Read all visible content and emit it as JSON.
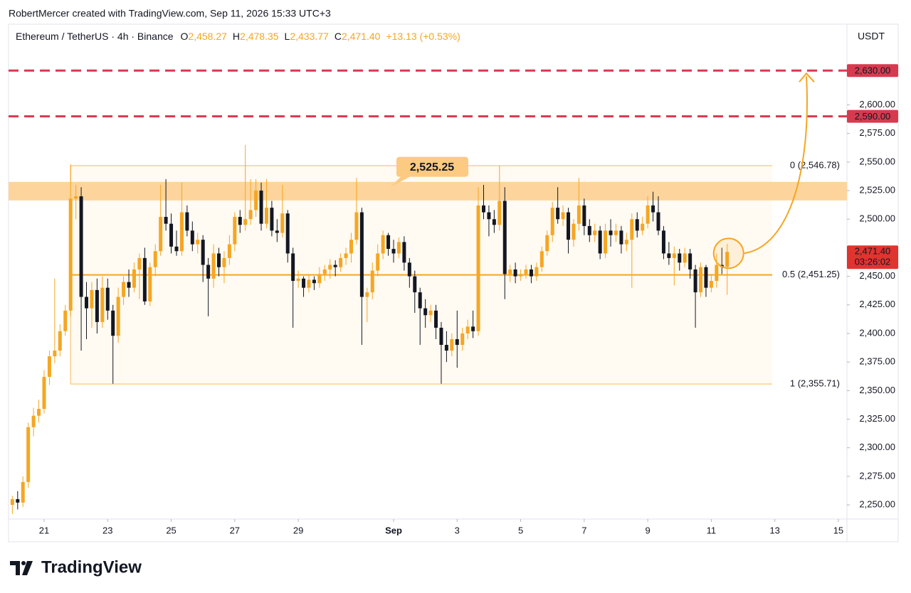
{
  "header": {
    "credit": "RobertMercer created with TradingView.com, Sep 11, 2026 15:33 UTC+3",
    "logo": "TradingView"
  },
  "chart_data": {
    "type": "candlestick",
    "title": "Ethereum / TetherUS · 4h · Binance",
    "ohlc": [
      {
        "key": "O",
        "value": "2,458.27"
      },
      {
        "key": "H",
        "value": "2,478.35"
      },
      {
        "key": "L",
        "value": "2,433.77"
      },
      {
        "key": "C",
        "value": "2,471.40"
      }
    ],
    "change": "+13.13 (+0.53%)",
    "currency": "USDT",
    "up_color": "#f5a623",
    "down_color": "#131722",
    "candles": [
      [
        2250,
        2258,
        2242,
        2255
      ],
      [
        2255,
        2262,
        2246,
        2252
      ],
      [
        2252,
        2275,
        2248,
        2270
      ],
      [
        2270,
        2322,
        2265,
        2318
      ],
      [
        2318,
        2335,
        2310,
        2328
      ],
      [
        2328,
        2342,
        2322,
        2334
      ],
      [
        2334,
        2368,
        2330,
        2362
      ],
      [
        2362,
        2385,
        2355,
        2380
      ],
      [
        2380,
        2448,
        2374,
        2385
      ],
      [
        2385,
        2408,
        2380,
        2402
      ],
      [
        2402,
        2425,
        2398,
        2420
      ],
      [
        2420,
        2548,
        2415,
        2518
      ],
      [
        2518,
        2530,
        2500,
        2520
      ],
      [
        2520,
        2528,
        2385,
        2432
      ],
      [
        2432,
        2445,
        2395,
        2422
      ],
      [
        2422,
        2445,
        2405,
        2438
      ],
      [
        2438,
        2448,
        2400,
        2410
      ],
      [
        2410,
        2450,
        2405,
        2440
      ],
      [
        2440,
        2448,
        2412,
        2420
      ],
      [
        2420,
        2425,
        2356,
        2398
      ],
      [
        2398,
        2440,
        2392,
        2432
      ],
      [
        2432,
        2450,
        2425,
        2445
      ],
      [
        2445,
        2456,
        2432,
        2440
      ],
      [
        2440,
        2462,
        2436,
        2456
      ],
      [
        2456,
        2470,
        2430,
        2466
      ],
      [
        2466,
        2475,
        2425,
        2428
      ],
      [
        2428,
        2462,
        2424,
        2458
      ],
      [
        2458,
        2478,
        2450,
        2472
      ],
      [
        2472,
        2530,
        2468,
        2502
      ],
      [
        2502,
        2535,
        2490,
        2496
      ],
      [
        2496,
        2505,
        2470,
        2476
      ],
      [
        2476,
        2490,
        2468,
        2472
      ],
      [
        2472,
        2532,
        2468,
        2506
      ],
      [
        2506,
        2512,
        2485,
        2490
      ],
      [
        2490,
        2498,
        2472,
        2478
      ],
      [
        2478,
        2488,
        2470,
        2482
      ],
      [
        2482,
        2486,
        2445,
        2460
      ],
      [
        2460,
        2466,
        2415,
        2448
      ],
      [
        2448,
        2478,
        2440,
        2470
      ],
      [
        2470,
        2475,
        2450,
        2458
      ],
      [
        2458,
        2472,
        2444,
        2466
      ],
      [
        2466,
        2486,
        2460,
        2478
      ],
      [
        2478,
        2506,
        2472,
        2502
      ],
      [
        2502,
        2508,
        2488,
        2495
      ],
      [
        2495,
        2565,
        2490,
        2500
      ],
      [
        2500,
        2535,
        2495,
        2508
      ],
      [
        2508,
        2535,
        2502,
        2525
      ],
      [
        2525,
        2532,
        2490,
        2496
      ],
      [
        2496,
        2535,
        2492,
        2510
      ],
      [
        2510,
        2516,
        2485,
        2490
      ],
      [
        2490,
        2500,
        2480,
        2488
      ],
      [
        2488,
        2530,
        2484,
        2505
      ],
      [
        2505,
        2508,
        2462,
        2470
      ],
      [
        2470,
        2475,
        2405,
        2446
      ],
      [
        2446,
        2455,
        2440,
        2448
      ],
      [
        2448,
        2450,
        2432,
        2440
      ],
      [
        2440,
        2452,
        2436,
        2447
      ],
      [
        2447,
        2450,
        2438,
        2444
      ],
      [
        2444,
        2458,
        2440,
        2452
      ],
      [
        2452,
        2460,
        2446,
        2456
      ],
      [
        2456,
        2465,
        2448,
        2460
      ],
      [
        2460,
        2464,
        2450,
        2458
      ],
      [
        2458,
        2470,
        2454,
        2466
      ],
      [
        2466,
        2475,
        2460,
        2470
      ],
      [
        2470,
        2488,
        2462,
        2482
      ],
      [
        2482,
        2536,
        2478,
        2506
      ],
      [
        2506,
        2510,
        2390,
        2432
      ],
      [
        2432,
        2440,
        2410,
        2436
      ],
      [
        2436,
        2462,
        2430,
        2455
      ],
      [
        2455,
        2478,
        2450,
        2470
      ],
      [
        2470,
        2490,
        2465,
        2486
      ],
      [
        2486,
        2488,
        2468,
        2474
      ],
      [
        2474,
        2482,
        2462,
        2470
      ],
      [
        2470,
        2484,
        2466,
        2480
      ],
      [
        2480,
        2485,
        2455,
        2462
      ],
      [
        2462,
        2466,
        2440,
        2450
      ],
      [
        2450,
        2455,
        2418,
        2436
      ],
      [
        2436,
        2440,
        2390,
        2422
      ],
      [
        2422,
        2430,
        2405,
        2416
      ],
      [
        2416,
        2425,
        2410,
        2420
      ],
      [
        2420,
        2425,
        2395,
        2405
      ],
      [
        2405,
        2410,
        2356,
        2390
      ],
      [
        2390,
        2402,
        2375,
        2385
      ],
      [
        2385,
        2400,
        2380,
        2395
      ],
      [
        2395,
        2420,
        2370,
        2390
      ],
      [
        2390,
        2405,
        2385,
        2400
      ],
      [
        2400,
        2412,
        2395,
        2406
      ],
      [
        2406,
        2420,
        2396,
        2402
      ],
      [
        2402,
        2528,
        2398,
        2512
      ],
      [
        2512,
        2530,
        2500,
        2506
      ],
      [
        2506,
        2512,
        2485,
        2500
      ],
      [
        2500,
        2508,
        2488,
        2495
      ],
      [
        2495,
        2547,
        2490,
        2516
      ],
      [
        2516,
        2528,
        2430,
        2452
      ],
      [
        2452,
        2460,
        2445,
        2456
      ],
      [
        2456,
        2462,
        2444,
        2450
      ],
      [
        2450,
        2456,
        2446,
        2452
      ],
      [
        2452,
        2460,
        2448,
        2456
      ],
      [
        2456,
        2460,
        2444,
        2450
      ],
      [
        2450,
        2462,
        2446,
        2458
      ],
      [
        2458,
        2476,
        2454,
        2472
      ],
      [
        2472,
        2490,
        2468,
        2486
      ],
      [
        2486,
        2515,
        2480,
        2510
      ],
      [
        2510,
        2528,
        2496,
        2500
      ],
      [
        2500,
        2512,
        2494,
        2506
      ],
      [
        2506,
        2510,
        2470,
        2482
      ],
      [
        2482,
        2500,
        2476,
        2496
      ],
      [
        2496,
        2536,
        2490,
        2512
      ],
      [
        2512,
        2518,
        2486,
        2494
      ],
      [
        2494,
        2500,
        2480,
        2486
      ],
      [
        2486,
        2496,
        2480,
        2490
      ],
      [
        2490,
        2494,
        2465,
        2470
      ],
      [
        2470,
        2496,
        2466,
        2490
      ],
      [
        2490,
        2500,
        2476,
        2486
      ],
      [
        2486,
        2496,
        2480,
        2490
      ],
      [
        2490,
        2494,
        2470,
        2478
      ],
      [
        2478,
        2488,
        2472,
        2482
      ],
      [
        2482,
        2505,
        2440,
        2500
      ],
      [
        2500,
        2506,
        2484,
        2490
      ],
      [
        2490,
        2502,
        2486,
        2496
      ],
      [
        2496,
        2520,
        2492,
        2512
      ],
      [
        2512,
        2524,
        2498,
        2506
      ],
      [
        2506,
        2520,
        2486,
        2490
      ],
      [
        2490,
        2494,
        2465,
        2470
      ],
      [
        2470,
        2480,
        2460,
        2466
      ],
      [
        2466,
        2476,
        2442,
        2470
      ],
      [
        2470,
        2474,
        2455,
        2462
      ],
      [
        2462,
        2475,
        2458,
        2470
      ],
      [
        2470,
        2474,
        2448,
        2456
      ],
      [
        2456,
        2460,
        2405,
        2436
      ],
      [
        2436,
        2462,
        2432,
        2458
      ],
      [
        2458,
        2460,
        2432,
        2440
      ],
      [
        2440,
        2452,
        2436,
        2446
      ],
      [
        2446,
        2470,
        2440,
        2460
      ],
      [
        2460,
        2475,
        2452,
        2458.27
      ],
      [
        2458.27,
        2478.35,
        2433.77,
        2471.4
      ]
    ],
    "xlim": [
      -0.12,
      26.27
    ],
    "xticks": [
      {
        "value": 1,
        "label": "21"
      },
      {
        "value": 3,
        "label": "23"
      },
      {
        "value": 5,
        "label": "25"
      },
      {
        "value": 7,
        "label": "27"
      },
      {
        "value": 9,
        "label": "29"
      },
      {
        "value": 12,
        "label": "Sep"
      },
      {
        "value": 14,
        "label": "3"
      },
      {
        "value": 16,
        "label": "5"
      },
      {
        "value": 18,
        "label": "7"
      },
      {
        "value": 20,
        "label": "9"
      },
      {
        "value": 22,
        "label": "11"
      },
      {
        "value": 24,
        "label": "13"
      },
      {
        "value": 26,
        "label": "15"
      }
    ],
    "ylim": [
      2237.6,
      2670
    ],
    "yticks": [
      {
        "value": 2250,
        "label": "2,250.00"
      },
      {
        "value": 2275,
        "label": "2,275.00"
      },
      {
        "value": 2300,
        "label": "2,300.00"
      },
      {
        "value": 2325,
        "label": "2,325.00"
      },
      {
        "value": 2350,
        "label": "2,350.00"
      },
      {
        "value": 2375,
        "label": "2,375.00"
      },
      {
        "value": 2400,
        "label": "2,400.00"
      },
      {
        "value": 2425,
        "label": "2,425.00"
      },
      {
        "value": 2450,
        "label": "2,450.00"
      },
      {
        "value": 2500,
        "label": "2,500.00"
      },
      {
        "value": 2525,
        "label": "2,525.00"
      },
      {
        "value": 2550,
        "label": "2,550.00"
      },
      {
        "value": 2575,
        "label": "2,575.00"
      },
      {
        "value": 2600,
        "label": "2,600.00"
      }
    ],
    "grid": false,
    "levels": [
      {
        "value": 2630,
        "label": "2,630.00",
        "color": "#d63a4f"
      },
      {
        "value": 2590,
        "label": "2,590.00",
        "color": "#d63a4f"
      }
    ],
    "fib": [
      {
        "value": 2546.78,
        "label": "0 (2,546.78)",
        "color": "#fbd08e"
      },
      {
        "value": 2451.25,
        "label": "0.5 (2,451.25)",
        "color": "#f5a623"
      },
      {
        "value": 2355.71,
        "label": "1 (2,355.71)",
        "color": "#fbd08e"
      }
    ],
    "zone": [
      2516.4,
      2532.6
    ],
    "callout": {
      "value": 2525.25,
      "label": "2,525.25"
    },
    "last_price": {
      "value": 2471.4,
      "label": "2,471.40",
      "countdown": "03:26:02",
      "color": "#e0342f"
    }
  }
}
